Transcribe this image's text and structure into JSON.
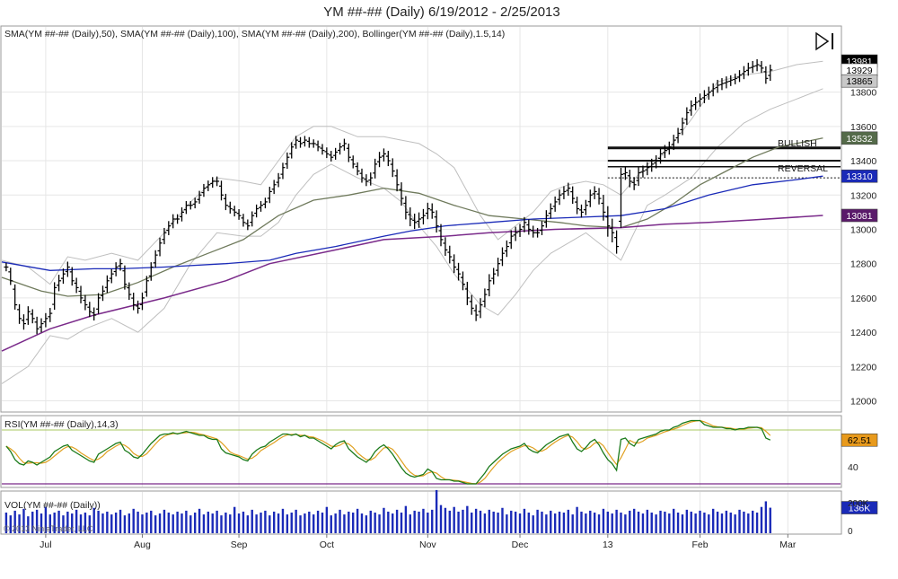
{
  "header": {
    "title": "YM ##-## (Daily)  6/19/2012 - 2/25/2013"
  },
  "price_panel": {
    "indicator_label": "SMA(YM ##-## (Daily),50), SMA(YM ##-## (Daily),100), SMA(YM ##-## (Daily),200), Bollinger(YM ##-## (Daily),1.5,14)",
    "annotations": {
      "bullish": "BULLISH",
      "reversal": "REVERSAL"
    },
    "value_tags": [
      {
        "text": "13981",
        "value": 13981,
        "bg": "#000000",
        "fg": "#ffffff"
      },
      {
        "text": "13929",
        "value": 13929,
        "bg": "#ffffff",
        "fg": "#000000"
      },
      {
        "text": "13865",
        "value": 13865,
        "bg": "#c8c8c8",
        "fg": "#000000"
      },
      {
        "text": "13532",
        "value": 13532,
        "bg": "#556b4a",
        "fg": "#ffffff"
      },
      {
        "text": "13310",
        "value": 13310,
        "bg": "#1a2ab8",
        "fg": "#ffffff"
      },
      {
        "text": "13081",
        "value": 13081,
        "bg": "#5a1a6a",
        "fg": "#ffffff"
      }
    ]
  },
  "rsi_panel": {
    "label": "RSI(YM ##-## (Daily),14,3)",
    "tick": "40",
    "value_tag": {
      "text": "62.51",
      "value": 62.51,
      "bg": "#e89a1c",
      "fg": "#000000"
    }
  },
  "volume_panel": {
    "label": "VOL(YM ##-## (Daily))",
    "ticks": [
      "200K",
      "0"
    ],
    "value_tag": {
      "text": "136K",
      "value": 136000,
      "bg": "#1a2ab8",
      "fg": "#ffffff"
    },
    "copyright": "© 2013 NinjaTrader, LLC"
  },
  "colors": {
    "bars": "#000000",
    "sma50": "#6f7a5c",
    "sma100": "#1a2ab8",
    "sma200": "#7a2a8a",
    "bollinger": "#bfbfbf",
    "rsi": "#1a7a1a",
    "rsi_signal": "#e0a020",
    "rsi_upper": "#a8c860",
    "rsi_lower": "#7a2a8a",
    "volume": "#1a2ab8"
  },
  "chart_data": {
    "type": "ohlc",
    "x_axis": {
      "months": [
        {
          "label": "Jul",
          "day": 9
        },
        {
          "label": "Aug",
          "day": 31
        },
        {
          "label": "Sep",
          "day": 53
        },
        {
          "label": "Oct",
          "day": 73
        },
        {
          "label": "Nov",
          "day": 96
        },
        {
          "label": "Dec",
          "day": 117
        },
        {
          "label": "13",
          "day": 137
        },
        {
          "label": "Feb",
          "day": 158
        },
        {
          "label": "Mar",
          "day": 178
        }
      ],
      "day_range": [
        -1,
        190
      ]
    },
    "price_axis": {
      "ylim": [
        11940,
        14180
      ],
      "ticks": [
        12000,
        12200,
        12400,
        12600,
        12800,
        13000,
        13200,
        13400,
        13600,
        13800
      ]
    },
    "closes": [
      12780,
      12700,
      12560,
      12480,
      12450,
      12520,
      12480,
      12420,
      12450,
      12480,
      12510,
      12660,
      12700,
      12740,
      12780,
      12700,
      12660,
      12600,
      12560,
      12520,
      12500,
      12600,
      12640,
      12700,
      12740,
      12780,
      12800,
      12680,
      12620,
      12560,
      12540,
      12600,
      12700,
      12780,
      12850,
      12920,
      12980,
      13020,
      13060,
      13060,
      13100,
      13140,
      13140,
      13160,
      13200,
      13240,
      13260,
      13280,
      13280,
      13200,
      13140,
      13120,
      13100,
      13080,
      13040,
      13020,
      13080,
      13120,
      13140,
      13160,
      13220,
      13260,
      13300,
      13360,
      13420,
      13480,
      13520,
      13500,
      13520,
      13500,
      13500,
      13480,
      13460,
      13440,
      13420,
      13450,
      13480,
      13500,
      13420,
      13380,
      13340,
      13300,
      13280,
      13300,
      13380,
      13420,
      13440,
      13400,
      13340,
      13260,
      13180,
      13100,
      13060,
      13040,
      13060,
      13080,
      13120,
      13100,
      13020,
      12940,
      12880,
      12840,
      12780,
      12740,
      12680,
      12600,
      12540,
      12500,
      12560,
      12620,
      12700,
      12740,
      12800,
      12860,
      12900,
      12960,
      12980,
      13000,
      13040,
      13000,
      12980,
      12980,
      13020,
      13080,
      13120,
      13160,
      13200,
      13220,
      13240,
      13180,
      13120,
      13100,
      13140,
      13200,
      13220,
      13180,
      13100,
      13020,
      12980,
      12900,
      13320,
      13330,
      13280,
      13260,
      13330,
      13340,
      13360,
      13380,
      13400,
      13440,
      13460,
      13480,
      13520,
      13560,
      13620,
      13680,
      13720,
      13740,
      13760,
      13780,
      13800,
      13820,
      13840,
      13850,
      13860,
      13870,
      13880,
      13900,
      13920,
      13940,
      13950,
      13960,
      13940,
      13880,
      13929
    ],
    "ranges": [
      70,
      70,
      80,
      90,
      100,
      90,
      80,
      90,
      90,
      90,
      90,
      90,
      100,
      90,
      90,
      80,
      90,
      90,
      90,
      90,
      90,
      80,
      90,
      90,
      80,
      80,
      80,
      90,
      90,
      90,
      90,
      90,
      80,
      80,
      80,
      90,
      80,
      80,
      80,
      80,
      80,
      70,
      70,
      70,
      70,
      70,
      70,
      70,
      80,
      90,
      80,
      80,
      70,
      70,
      70,
      70,
      70,
      70,
      70,
      70,
      80,
      80,
      80,
      80,
      80,
      80,
      70,
      70,
      70,
      70,
      70,
      70,
      70,
      70,
      70,
      70,
      70,
      80,
      80,
      70,
      70,
      80,
      80,
      90,
      90,
      90,
      90,
      90,
      100,
      110,
      120,
      120,
      120,
      110,
      110,
      110,
      100,
      110,
      110,
      110,
      100,
      110,
      100,
      110,
      100,
      120,
      110,
      100,
      110,
      100,
      110,
      100,
      100,
      100,
      100,
      100,
      100,
      90,
      90,
      90,
      80,
      80,
      80,
      90,
      90,
      90,
      90,
      90,
      90,
      90,
      90,
      90,
      90,
      90,
      90,
      100,
      140,
      180,
      160,
      120,
      110,
      100,
      100,
      90,
      90,
      90,
      90,
      90,
      90,
      90,
      90,
      90,
      90,
      90,
      90,
      90,
      90,
      90,
      90,
      90,
      90,
      90,
      90,
      90,
      90,
      80,
      80,
      80,
      90,
      90,
      90,
      90,
      80,
      90,
      90
    ],
    "sma50": [
      [
        -1,
        12810
      ],
      [
        10,
        12760
      ],
      [
        20,
        12770
      ],
      [
        26,
        12770
      ],
      [
        36,
        12780
      ],
      [
        50,
        12800
      ],
      [
        60,
        12820
      ],
      [
        66,
        12860
      ],
      [
        75,
        12900
      ],
      [
        86,
        12960
      ],
      [
        92,
        12990
      ],
      [
        100,
        13020
      ],
      [
        110,
        13040
      ],
      [
        120,
        13060
      ],
      [
        130,
        13070
      ],
      [
        140,
        13080
      ],
      [
        150,
        13120
      ],
      [
        160,
        13200
      ],
      [
        170,
        13260
      ],
      [
        180,
        13290
      ],
      [
        186,
        13310
      ]
    ],
    "sma100": [
      [
        -1,
        12290
      ],
      [
        10,
        12420
      ],
      [
        20,
        12500
      ],
      [
        36,
        12600
      ],
      [
        50,
        12700
      ],
      [
        60,
        12800
      ],
      [
        75,
        12880
      ],
      [
        86,
        12940
      ],
      [
        100,
        12960
      ],
      [
        110,
        12980
      ],
      [
        125,
        13000
      ],
      [
        140,
        13010
      ],
      [
        150,
        13030
      ],
      [
        160,
        13040
      ],
      [
        170,
        13055
      ],
      [
        186,
        13081
      ]
    ],
    "sma200": [
      [
        -1,
        12720
      ],
      [
        8,
        12640
      ],
      [
        14,
        12610
      ],
      [
        22,
        12620
      ],
      [
        30,
        12690
      ],
      [
        38,
        12780
      ],
      [
        46,
        12860
      ],
      [
        54,
        12940
      ],
      [
        62,
        13080
      ],
      [
        70,
        13170
      ],
      [
        78,
        13200
      ],
      [
        86,
        13240
      ],
      [
        94,
        13210
      ],
      [
        102,
        13140
      ],
      [
        110,
        13080
      ],
      [
        118,
        13060
      ],
      [
        126,
        13040
      ],
      [
        132,
        13020
      ],
      [
        140,
        13010
      ],
      [
        146,
        13060
      ],
      [
        152,
        13150
      ],
      [
        158,
        13260
      ],
      [
        164,
        13340
      ],
      [
        170,
        13420
      ],
      [
        176,
        13480
      ],
      [
        186,
        13532
      ]
    ],
    "bollinger_upper": [
      [
        -1,
        12820
      ],
      [
        5,
        12780
      ],
      [
        10,
        12680
      ],
      [
        14,
        12840
      ],
      [
        18,
        12820
      ],
      [
        24,
        12860
      ],
      [
        30,
        12820
      ],
      [
        36,
        12980
      ],
      [
        42,
        13160
      ],
      [
        48,
        13300
      ],
      [
        54,
        13280
      ],
      [
        58,
        13260
      ],
      [
        62,
        13400
      ],
      [
        66,
        13540
      ],
      [
        70,
        13600
      ],
      [
        74,
        13600
      ],
      [
        80,
        13540
      ],
      [
        86,
        13540
      ],
      [
        90,
        13520
      ],
      [
        94,
        13500
      ],
      [
        98,
        13440
      ],
      [
        102,
        13360
      ],
      [
        108,
        13080
      ],
      [
        112,
        12940
      ],
      [
        116,
        13020
      ],
      [
        120,
        13100
      ],
      [
        124,
        13220
      ],
      [
        128,
        13260
      ],
      [
        132,
        13280
      ],
      [
        136,
        13260
      ],
      [
        140,
        13200
      ],
      [
        146,
        13380
      ],
      [
        150,
        13440
      ],
      [
        156,
        13640
      ],
      [
        162,
        13860
      ],
      [
        168,
        13900
      ],
      [
        174,
        13920
      ],
      [
        180,
        13960
      ],
      [
        186,
        13980
      ]
    ],
    "bollinger_lower": [
      [
        -1,
        12100
      ],
      [
        5,
        12200
      ],
      [
        10,
        12380
      ],
      [
        14,
        12360
      ],
      [
        18,
        12420
      ],
      [
        24,
        12480
      ],
      [
        30,
        12400
      ],
      [
        36,
        12540
      ],
      [
        42,
        12800
      ],
      [
        48,
        12980
      ],
      [
        54,
        12960
      ],
      [
        58,
        12960
      ],
      [
        62,
        13040
      ],
      [
        66,
        13200
      ],
      [
        70,
        13320
      ],
      [
        74,
        13380
      ],
      [
        80,
        13300
      ],
      [
        86,
        13240
      ],
      [
        90,
        13160
      ],
      [
        94,
        13020
      ],
      [
        98,
        12900
      ],
      [
        102,
        12740
      ],
      [
        108,
        12560
      ],
      [
        112,
        12500
      ],
      [
        116,
        12620
      ],
      [
        120,
        12760
      ],
      [
        124,
        12860
      ],
      [
        128,
        12920
      ],
      [
        132,
        12980
      ],
      [
        136,
        12900
      ],
      [
        140,
        12820
      ],
      [
        146,
        13140
      ],
      [
        150,
        13200
      ],
      [
        156,
        13300
      ],
      [
        162,
        13480
      ],
      [
        168,
        13620
      ],
      [
        174,
        13700
      ],
      [
        180,
        13760
      ],
      [
        186,
        13820
      ]
    ],
    "horizontal_lines": [
      {
        "value": 13475,
        "from_day": 137,
        "style": "solid",
        "weight": 3
      },
      {
        "value": 13400,
        "from_day": 137,
        "style": "solid",
        "weight": 2
      },
      {
        "value": 13365,
        "from_day": 137,
        "style": "solid",
        "weight": 1.5
      },
      {
        "value": 13300,
        "from_day": 137,
        "style": "dotted",
        "weight": 1
      }
    ],
    "rsi": {
      "ylim": [
        28,
        80
      ],
      "upper_level": 70,
      "lower_level": 30,
      "values": [
        58,
        54,
        48,
        45,
        44,
        47,
        46,
        44,
        46,
        48,
        50,
        54,
        56,
        58,
        59,
        55,
        53,
        51,
        49,
        47,
        46,
        52,
        54,
        56,
        58,
        60,
        61,
        55,
        53,
        50,
        49,
        52,
        56,
        60,
        63,
        66,
        67,
        67,
        68,
        67,
        68,
        69,
        68,
        67,
        66,
        66,
        64,
        63,
        63,
        56,
        53,
        52,
        51,
        50,
        48,
        47,
        52,
        55,
        57,
        58,
        61,
        63,
        65,
        67,
        67,
        66,
        67,
        65,
        66,
        64,
        64,
        62,
        60,
        58,
        56,
        59,
        61,
        62,
        56,
        53,
        50,
        48,
        46,
        49,
        54,
        57,
        59,
        56,
        52,
        47,
        42,
        38,
        36,
        35,
        36,
        37,
        41,
        39,
        34,
        33,
        33,
        33,
        32,
        32,
        31,
        30,
        30,
        30,
        34,
        38,
        43,
        46,
        49,
        52,
        54,
        56,
        57,
        58,
        60,
        56,
        54,
        53,
        56,
        59,
        61,
        63,
        65,
        66,
        67,
        61,
        56,
        54,
        57,
        61,
        63,
        59,
        53,
        48,
        45,
        40,
        63,
        64,
        60,
        58,
        63,
        64,
        65,
        66,
        67,
        69,
        70,
        70,
        72,
        73,
        75,
        76,
        77,
        77,
        77,
        74,
        73,
        72,
        72,
        72,
        71,
        71,
        70,
        71,
        71,
        72,
        72,
        72,
        71,
        64,
        62.51
      ]
    },
    "volume": {
      "ylim": [
        0,
        220000
      ],
      "values": [
        110000,
        95000,
        120000,
        100000,
        130000,
        90000,
        115000,
        125000,
        105000,
        140000,
        100000,
        110000,
        120000,
        95000,
        115000,
        105000,
        125000,
        100000,
        110000,
        95000,
        135000,
        120000,
        105000,
        115000,
        100000,
        110000,
        125000,
        95000,
        105000,
        130000,
        115000,
        100000,
        110000,
        120000,
        95000,
        105000,
        125000,
        110000,
        100000,
        115000,
        105000,
        120000,
        95000,
        110000,
        130000,
        100000,
        115000,
        105000,
        120000,
        95000,
        110000,
        100000,
        140000,
        105000,
        115000,
        95000,
        125000,
        100000,
        110000,
        120000,
        95000,
        115000,
        105000,
        130000,
        100000,
        110000,
        125000,
        95000,
        105000,
        115000,
        100000,
        120000,
        110000,
        140000,
        95000,
        105000,
        125000,
        100000,
        115000,
        110000,
        130000,
        105000,
        95000,
        120000,
        110000,
        100000,
        135000,
        115000,
        105000,
        125000,
        110000,
        145000,
        100000,
        120000,
        115000,
        130000,
        110000,
        125000,
        230000,
        150000,
        135000,
        120000,
        140000,
        115000,
        125000,
        145000,
        110000,
        130000,
        120000,
        105000,
        125000,
        115000,
        110000,
        135000,
        100000,
        120000,
        115000,
        105000,
        130000,
        110000,
        95000,
        125000,
        115000,
        100000,
        120000,
        105000,
        115000,
        110000,
        125000,
        100000,
        140000,
        115000,
        105000,
        120000,
        110000,
        100000,
        130000,
        115000,
        105000,
        125000,
        110000,
        100000,
        120000,
        130000,
        115000,
        105000,
        125000,
        110000,
        100000,
        120000,
        115000,
        105000,
        130000,
        110000,
        100000,
        125000,
        115000,
        105000,
        120000,
        110000,
        100000,
        130000,
        115000,
        105000,
        120000,
        110000,
        100000,
        125000,
        115000,
        105000,
        120000,
        110000,
        140000,
        170000,
        136000
      ]
    }
  }
}
